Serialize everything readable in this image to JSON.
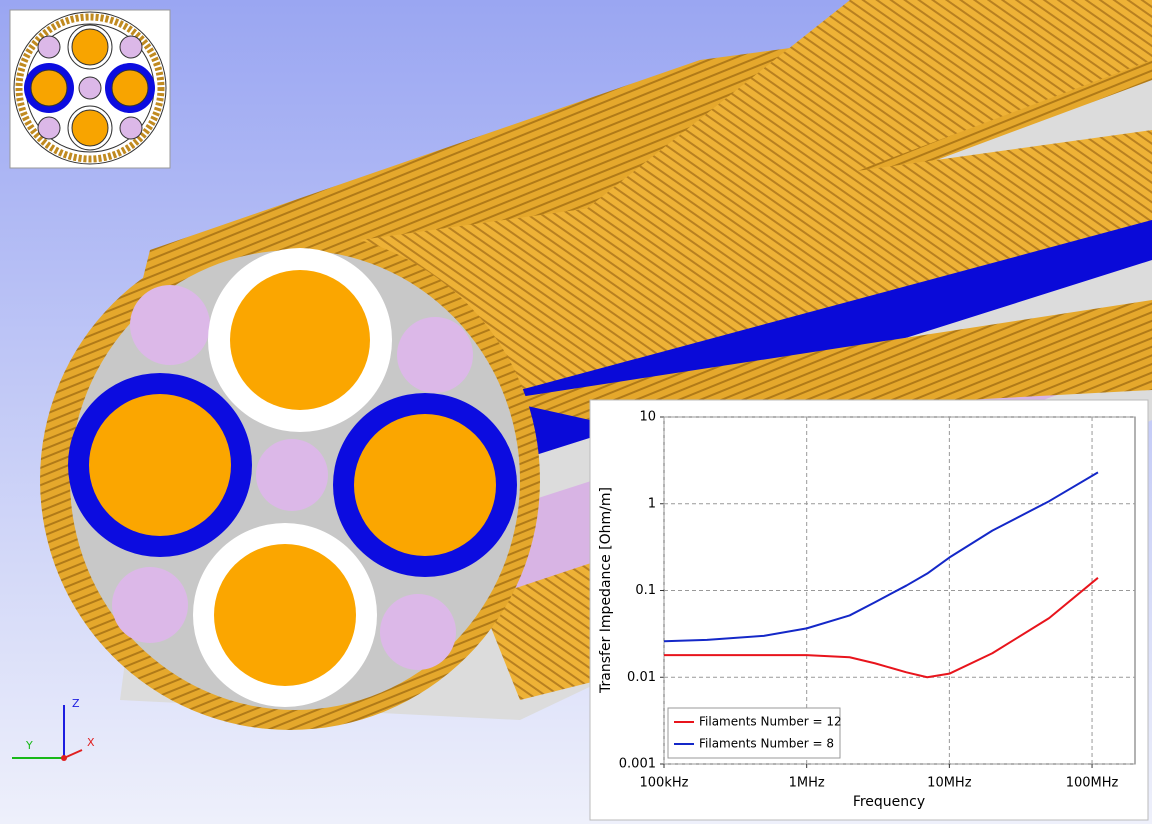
{
  "chart_data": {
    "type": "line",
    "x_label": "Frequency",
    "y_label": "Transfer Impedance [Ohm/m]",
    "x": [
      100000,
      200000,
      500000,
      1000000,
      2000000,
      3000000,
      5000000,
      7000000,
      10000000,
      20000000,
      50000000,
      110000000
    ],
    "series": [
      {
        "name": "Filaments Number = 12",
        "color": "#e8141c",
        "values": [
          0.018,
          0.018,
          0.018,
          0.018,
          0.017,
          0.0145,
          0.0114,
          0.01,
          0.011,
          0.0189,
          0.048,
          0.14
        ]
      },
      {
        "name": "Filaments Number = 8",
        "color": "#1428c8",
        "values": [
          0.026,
          0.027,
          0.03,
          0.0366,
          0.0516,
          0.073,
          0.114,
          0.157,
          0.24,
          0.49,
          1.07,
          2.3
        ]
      }
    ],
    "xlim": [
      100000,
      200000000
    ],
    "ylim": [
      0.001,
      10
    ],
    "xticks": [
      {
        "value": 100000,
        "label": "100kHz"
      },
      {
        "value": 1000000,
        "label": "1MHz"
      },
      {
        "value": 10000000,
        "label": "10MHz"
      },
      {
        "value": 100000000,
        "label": "100MHz"
      }
    ],
    "yticks": [
      0.001,
      0.01,
      0.1,
      1,
      10
    ],
    "x_log": true,
    "y_log": true,
    "grid": true,
    "legend": "lower-left"
  },
  "axis_triad": {
    "z": "Z",
    "y": "Y",
    "x": "X"
  }
}
